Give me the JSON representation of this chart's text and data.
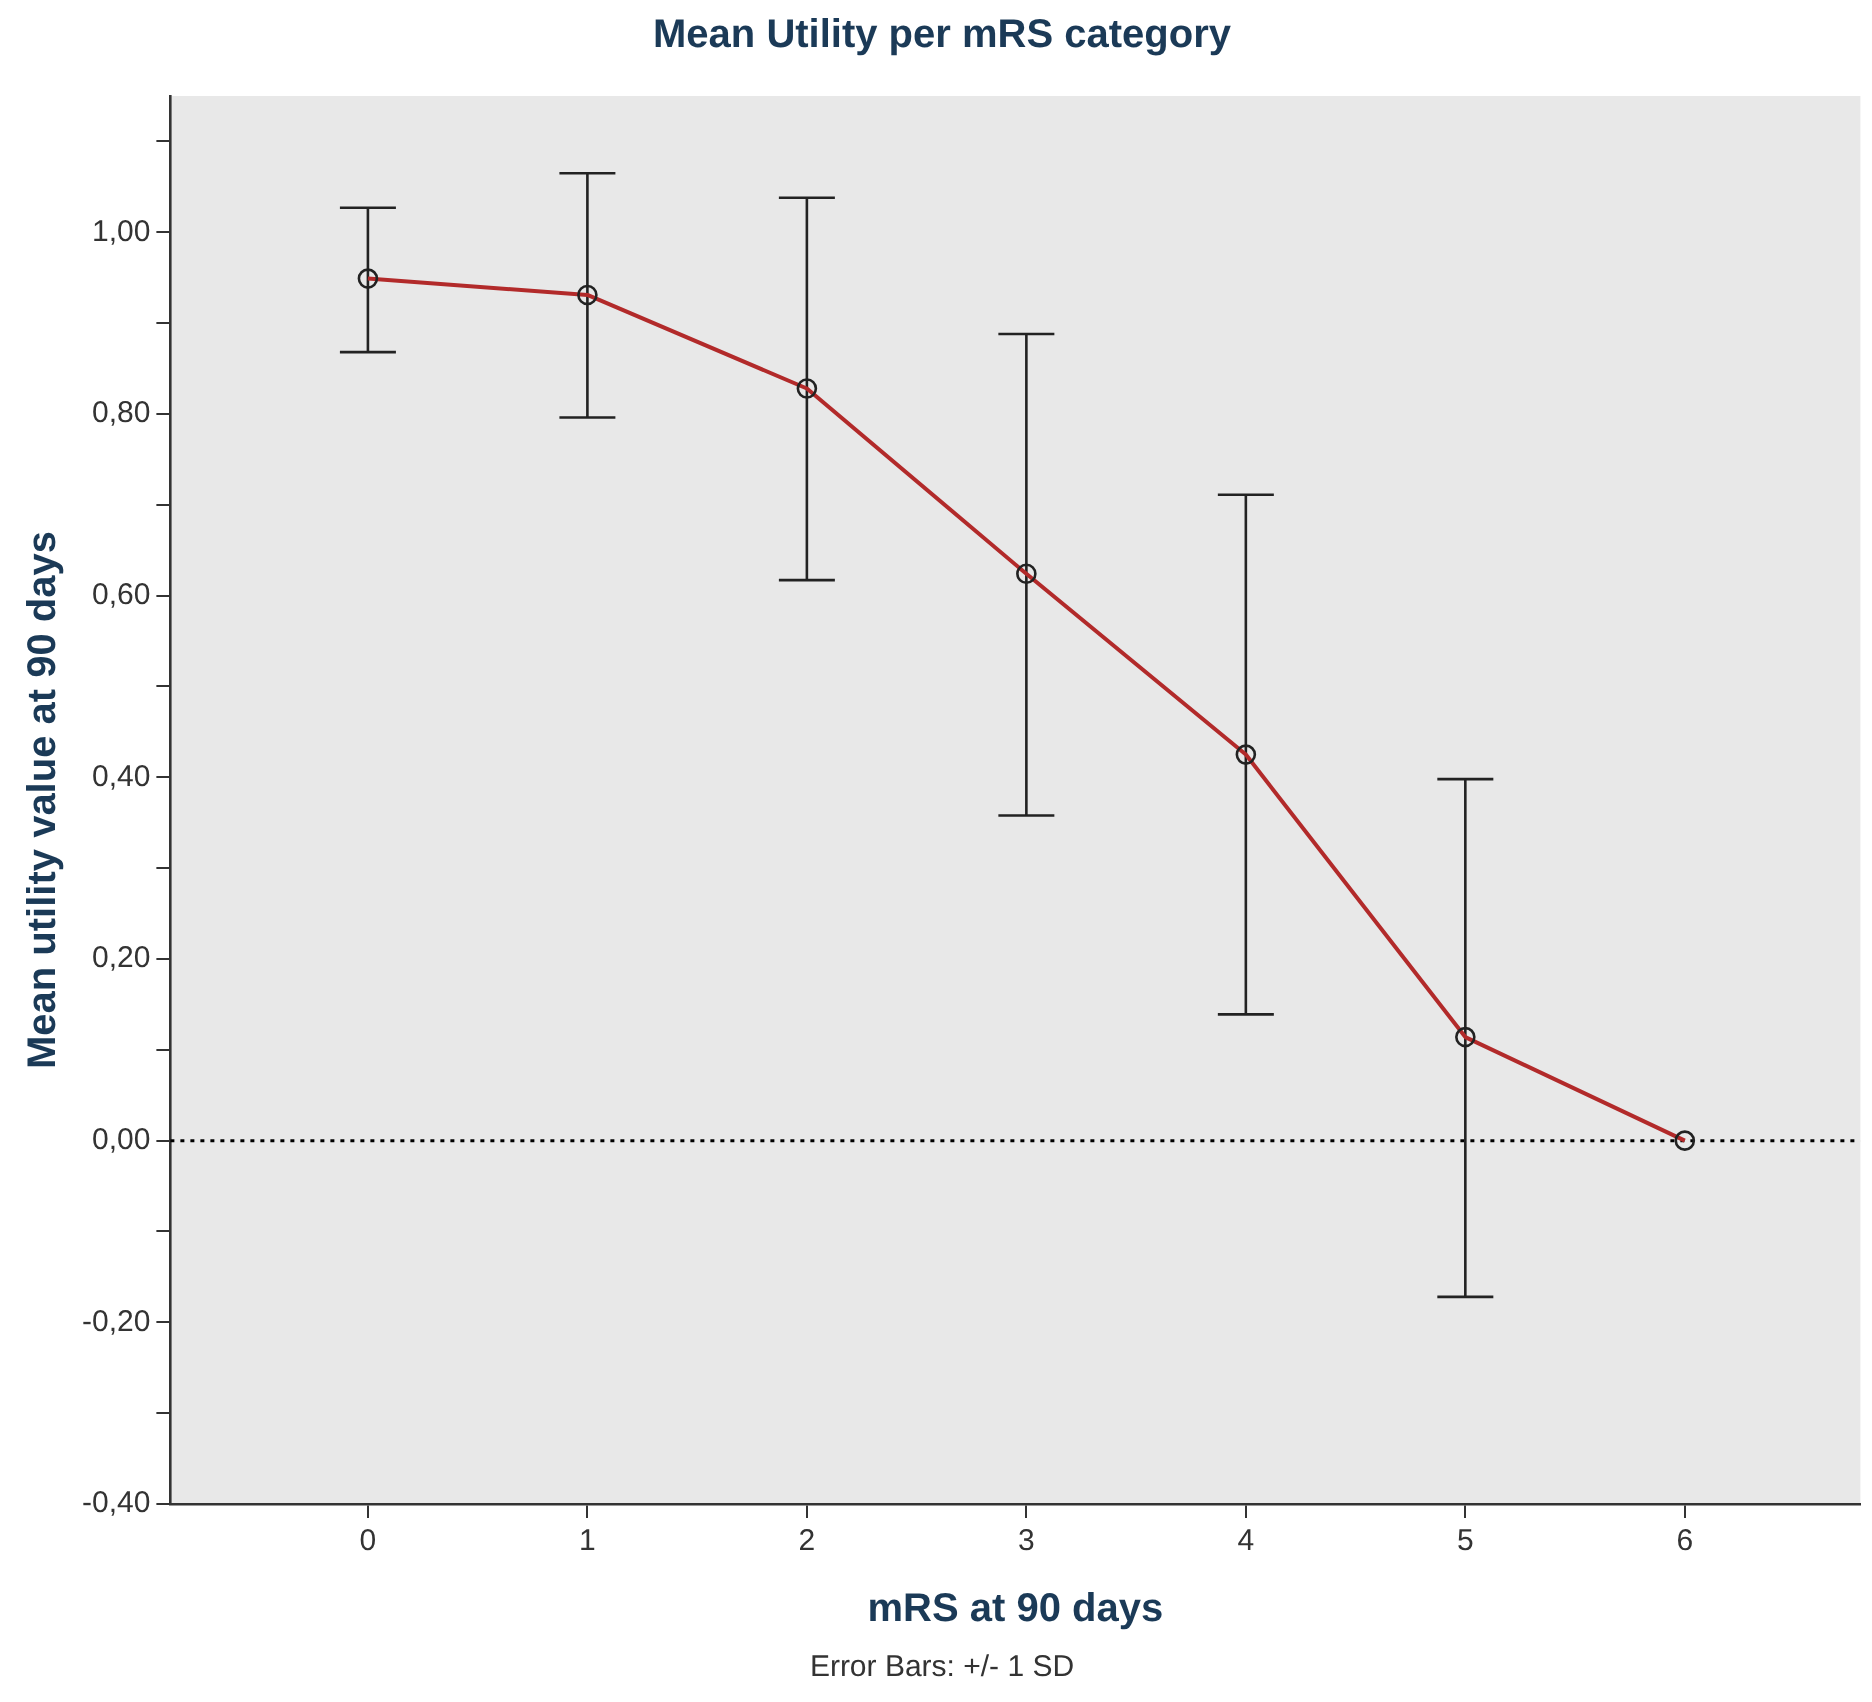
{
  "chart_data": {
    "type": "line",
    "title": "Mean Utility per mRS category",
    "xlabel": "mRS at 90 days",
    "ylabel": "Mean utility value at 90 days",
    "annotations": [
      "Error Bars: +/- 1 SD"
    ],
    "x": [
      0,
      1,
      2,
      3,
      4,
      5,
      6
    ],
    "series": [
      {
        "color": "#b22a2a",
        "values": [
          0.949,
          0.931,
          0.828,
          0.624,
          0.425,
          0.114,
          0.0
        ],
        "errors": [
          [
            0.868,
            1.027
          ],
          [
            0.796,
            1.065
          ],
          [
            0.617,
            1.038
          ],
          [
            0.358,
            0.888
          ],
          [
            0.139,
            0.711
          ],
          [
            -0.172,
            0.398
          ],
          null
        ]
      }
    ],
    "xlim": [
      -0.9,
      6.8
    ],
    "xticks": [
      0,
      1,
      2,
      3,
      4,
      5,
      6
    ],
    "ylim": [
      -0.4,
      1.15
    ],
    "yticks": [
      {
        "value": -0.4,
        "label": "-0,40"
      },
      {
        "value": -0.3,
        "label": null
      },
      {
        "value": -0.2,
        "label": "-0,20"
      },
      {
        "value": -0.1,
        "label": null
      },
      {
        "value": 0,
        "label": "0,00"
      },
      {
        "value": 0.1,
        "label": null
      },
      {
        "value": 0.2,
        "label": "0,20"
      },
      {
        "value": 0.3,
        "label": null
      },
      {
        "value": 0.4,
        "label": "0,40"
      },
      {
        "value": 0.5,
        "label": null
      },
      {
        "value": 0.6,
        "label": "0,60"
      },
      {
        "value": 0.7,
        "label": null
      },
      {
        "value": 0.8,
        "label": "0,80"
      },
      {
        "value": 0.9,
        "label": null
      },
      {
        "value": 1.0,
        "label": "1,00"
      },
      {
        "value": 1.1,
        "label": null
      }
    ],
    "ref_lines": [
      {
        "axis": "y",
        "value": 0,
        "line_style": "dotted",
        "color": "#000000"
      }
    ],
    "grid": false,
    "legend": false,
    "marker": "circle",
    "line_style": "solid"
  }
}
